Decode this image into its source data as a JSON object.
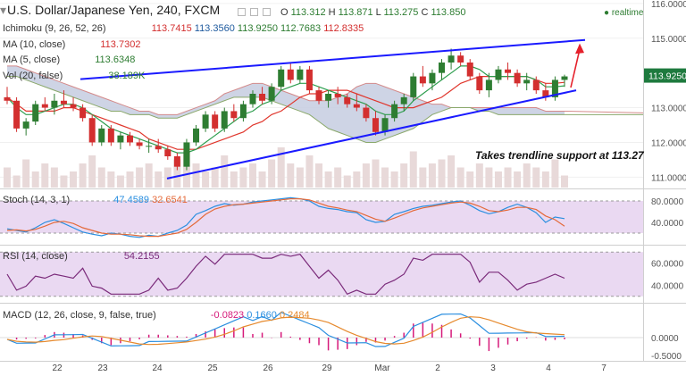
{
  "header": {
    "title": "U.S. Dollar/Japanese Yen, 240, FXCM",
    "ohlc": {
      "o_label": "O",
      "o": "113.312",
      "h_label": "H",
      "h": "113.871",
      "l_label": "L",
      "l": "113.275",
      "c_label": "C",
      "c": "113.850"
    },
    "realtime": "realtime"
  },
  "indicators": {
    "ichimoku": {
      "label": "Ichimoku (9, 26, 52, 26)",
      "v1": "113.7415",
      "v2": "113.3560",
      "v3": "113.9250",
      "v4": "112.7683",
      "v5": "112.8335"
    },
    "ma10": {
      "label": "MA (10, close)",
      "value": "113.7302"
    },
    "ma5": {
      "label": "MA (5, close)",
      "value": "113.6348"
    },
    "vol": {
      "label": "Vol (20, false)",
      "value": "38.189K"
    },
    "stoch": {
      "label": "Stoch (14, 3, 1)",
      "k": "47.4589",
      "d": "32.6541"
    },
    "rsi": {
      "label": "RSI (14, close)",
      "value": "54.2155"
    },
    "macd": {
      "label": "MACD (12, 26, close, 9, false, true)",
      "hist": "-0.0823",
      "macd": "0.1660",
      "signal": "0.2484"
    }
  },
  "annotation": "Takes trendline support at 113.27",
  "price_tag": "113.9250",
  "colors": {
    "up": "#2e7d32",
    "down": "#d32f2f",
    "trendline": "#1a1aff",
    "arrow": "#e5202b",
    "cloud": "#c5cde0",
    "cloud_edge": "#d48a8a",
    "stoch_band": "#ead9f2",
    "stoch_k": "#2b8fe0",
    "stoch_d": "#e46a3a",
    "rsi_line": "#7a2a7a",
    "macd_line": "#2b8fe0",
    "signal_line": "#e68a2e",
    "hist": "#d61a7a",
    "price_tag": "#1e7a3e",
    "ma10": "#e0362c",
    "ma5": "#2e9e4e",
    "volume": "#e8d9d9"
  },
  "chart_data": [
    {
      "type": "candlestick",
      "title": "U.S. Dollar/Japanese Yen, 240, FXCM",
      "y_ticks": [
        "116.0000",
        "115.0000",
        "113.0000",
        "112.0000",
        "111.0000"
      ],
      "ylim": [
        110.7,
        116.1
      ],
      "x_ticks": [
        "22",
        "23",
        "24",
        "25",
        "26",
        "29",
        "Mar",
        "2",
        "3",
        "4",
        "7"
      ],
      "candles": [
        {
          "o": 113.3,
          "h": 113.6,
          "l": 113.1,
          "c": 113.2
        },
        {
          "o": 113.2,
          "h": 113.3,
          "l": 112.3,
          "c": 112.4
        },
        {
          "o": 112.4,
          "h": 112.7,
          "l": 112.2,
          "c": 112.6
        },
        {
          "o": 112.6,
          "h": 113.2,
          "l": 112.5,
          "c": 113.1
        },
        {
          "o": 113.1,
          "h": 113.3,
          "l": 112.9,
          "c": 113.0
        },
        {
          "o": 113.0,
          "h": 113.4,
          "l": 112.8,
          "c": 113.2
        },
        {
          "o": 113.2,
          "h": 113.5,
          "l": 113.0,
          "c": 113.1
        },
        {
          "o": 113.1,
          "h": 113.3,
          "l": 112.9,
          "c": 113.0
        },
        {
          "o": 113.0,
          "h": 113.1,
          "l": 112.6,
          "c": 112.7
        },
        {
          "o": 112.7,
          "h": 112.8,
          "l": 111.9,
          "c": 112.0
        },
        {
          "o": 112.0,
          "h": 112.5,
          "l": 111.9,
          "c": 112.4
        },
        {
          "o": 112.4,
          "h": 112.5,
          "l": 111.9,
          "c": 112.0
        },
        {
          "o": 112.0,
          "h": 112.3,
          "l": 111.8,
          "c": 112.2
        },
        {
          "o": 112.2,
          "h": 112.3,
          "l": 111.9,
          "c": 112.0
        },
        {
          "o": 112.0,
          "h": 112.1,
          "l": 111.8,
          "c": 111.9
        },
        {
          "o": 111.9,
          "h": 112.1,
          "l": 111.7,
          "c": 111.9
        },
        {
          "o": 111.9,
          "h": 112.1,
          "l": 111.7,
          "c": 111.8
        },
        {
          "o": 111.8,
          "h": 111.9,
          "l": 111.5,
          "c": 111.6
        },
        {
          "o": 111.6,
          "h": 111.7,
          "l": 111.2,
          "c": 111.3
        },
        {
          "o": 111.3,
          "h": 112.1,
          "l": 111.2,
          "c": 112.0
        },
        {
          "o": 112.0,
          "h": 112.5,
          "l": 111.9,
          "c": 112.4
        },
        {
          "o": 112.4,
          "h": 112.9,
          "l": 112.3,
          "c": 112.8
        },
        {
          "o": 112.8,
          "h": 112.9,
          "l": 112.3,
          "c": 112.4
        },
        {
          "o": 112.4,
          "h": 113.0,
          "l": 112.3,
          "c": 112.9
        },
        {
          "o": 112.9,
          "h": 113.1,
          "l": 112.6,
          "c": 112.7
        },
        {
          "o": 112.7,
          "h": 113.2,
          "l": 112.6,
          "c": 113.1
        },
        {
          "o": 113.1,
          "h": 113.5,
          "l": 113.0,
          "c": 113.4
        },
        {
          "o": 113.4,
          "h": 113.6,
          "l": 113.1,
          "c": 113.2
        },
        {
          "o": 113.2,
          "h": 113.7,
          "l": 113.1,
          "c": 113.6
        },
        {
          "o": 113.6,
          "h": 114.2,
          "l": 113.5,
          "c": 114.1
        },
        {
          "o": 114.1,
          "h": 114.3,
          "l": 113.7,
          "c": 113.8
        },
        {
          "o": 113.8,
          "h": 114.2,
          "l": 113.7,
          "c": 114.1
        },
        {
          "o": 114.1,
          "h": 114.2,
          "l": 113.4,
          "c": 113.5
        },
        {
          "o": 113.5,
          "h": 113.6,
          "l": 113.1,
          "c": 113.2
        },
        {
          "o": 113.2,
          "h": 113.5,
          "l": 113.0,
          "c": 113.4
        },
        {
          "o": 113.4,
          "h": 113.6,
          "l": 113.1,
          "c": 113.3
        },
        {
          "o": 113.3,
          "h": 113.4,
          "l": 113.0,
          "c": 113.1
        },
        {
          "o": 113.1,
          "h": 113.4,
          "l": 112.9,
          "c": 113.0
        },
        {
          "o": 113.0,
          "h": 113.1,
          "l": 112.6,
          "c": 112.7
        },
        {
          "o": 112.7,
          "h": 112.9,
          "l": 112.2,
          "c": 112.3
        },
        {
          "o": 112.3,
          "h": 112.8,
          "l": 112.2,
          "c": 112.7
        },
        {
          "o": 112.7,
          "h": 113.2,
          "l": 112.6,
          "c": 113.1
        },
        {
          "o": 113.1,
          "h": 113.4,
          "l": 112.9,
          "c": 113.3
        },
        {
          "o": 113.3,
          "h": 114.0,
          "l": 113.2,
          "c": 113.9
        },
        {
          "o": 113.9,
          "h": 114.2,
          "l": 113.6,
          "c": 113.7
        },
        {
          "o": 113.7,
          "h": 114.1,
          "l": 113.5,
          "c": 114.0
        },
        {
          "o": 114.0,
          "h": 114.4,
          "l": 113.8,
          "c": 114.3
        },
        {
          "o": 114.3,
          "h": 114.7,
          "l": 114.1,
          "c": 114.5
        },
        {
          "o": 114.5,
          "h": 114.6,
          "l": 114.2,
          "c": 114.3
        },
        {
          "o": 114.3,
          "h": 114.4,
          "l": 113.8,
          "c": 113.9
        },
        {
          "o": 113.9,
          "h": 114.0,
          "l": 113.4,
          "c": 113.5
        },
        {
          "o": 113.5,
          "h": 114.0,
          "l": 113.3,
          "c": 113.8
        },
        {
          "o": 113.8,
          "h": 114.2,
          "l": 113.7,
          "c": 114.1
        },
        {
          "o": 114.1,
          "h": 114.3,
          "l": 113.8,
          "c": 114.0
        },
        {
          "o": 114.0,
          "h": 114.1,
          "l": 113.6,
          "c": 113.7
        },
        {
          "o": 113.7,
          "h": 114.0,
          "l": 113.5,
          "c": 113.8
        },
        {
          "o": 113.8,
          "h": 113.9,
          "l": 113.4,
          "c": 113.5
        },
        {
          "o": 113.5,
          "h": 113.7,
          "l": 113.2,
          "c": 113.3
        },
        {
          "o": 113.3,
          "h": 113.9,
          "l": 113.2,
          "c": 113.8
        },
        {
          "o": 113.8,
          "h": 113.95,
          "l": 113.6,
          "c": 113.9
        }
      ],
      "ma10": [
        113.3,
        113.1,
        112.9,
        112.9,
        112.9,
        112.9,
        113.0,
        113.0,
        112.9,
        112.8,
        112.7,
        112.6,
        112.5,
        112.4,
        112.3,
        112.1,
        112.0,
        111.9,
        111.8,
        111.8,
        111.8,
        111.9,
        112.0,
        112.1,
        112.2,
        112.3,
        112.5,
        112.6,
        112.8,
        112.9,
        113.1,
        113.3,
        113.4,
        113.4,
        113.5,
        113.5,
        113.5,
        113.4,
        113.3,
        113.2,
        113.1,
        113.0,
        113.0,
        113.0,
        113.1,
        113.2,
        113.3,
        113.5,
        113.7,
        113.8,
        113.9,
        113.9,
        113.9,
        113.9,
        113.9,
        113.9,
        113.8,
        113.7,
        113.7,
        113.73
      ],
      "ma5": [
        113.3,
        113.0,
        112.8,
        112.8,
        112.9,
        113.0,
        113.1,
        113.1,
        113.0,
        112.8,
        112.6,
        112.4,
        112.3,
        112.2,
        112.1,
        112.0,
        111.9,
        111.8,
        111.7,
        111.7,
        111.8,
        112.0,
        112.2,
        112.4,
        112.6,
        112.8,
        112.9,
        113.1,
        113.2,
        113.5,
        113.6,
        113.7,
        113.7,
        113.6,
        113.5,
        113.4,
        113.3,
        113.2,
        113.1,
        112.9,
        112.8,
        112.8,
        112.9,
        113.2,
        113.4,
        113.6,
        113.8,
        114.0,
        114.2,
        114.2,
        114.1,
        113.9,
        113.9,
        113.9,
        113.9,
        113.9,
        113.8,
        113.6,
        113.6,
        113.63
      ],
      "cloud_upper": [
        114.2,
        114.2,
        114.1,
        114.0,
        113.9,
        113.8,
        113.7,
        113.6,
        113.5,
        113.4,
        113.3,
        113.2,
        113.1,
        113.0,
        112.9,
        112.9,
        112.8,
        112.8,
        112.8,
        112.9,
        113.0,
        113.1,
        113.2,
        113.4,
        113.5,
        113.6,
        113.7,
        113.7,
        113.6,
        113.5,
        113.4,
        113.3,
        113.2,
        113.2,
        113.2,
        113.3,
        113.4,
        113.6,
        113.7,
        113.7,
        113.6,
        113.5,
        113.4,
        113.3,
        113.2,
        113.1,
        113.1,
        113.0,
        113.0,
        113.0,
        113.0,
        113.0,
        113.0,
        113.0,
        113.0,
        113.0,
        113.0,
        112.9,
        112.9,
        112.9
      ],
      "cloud_lower": [
        113.9,
        113.9,
        113.8,
        113.7,
        113.6,
        113.5,
        113.4,
        113.3,
        113.2,
        113.1,
        113.0,
        112.9,
        112.9,
        112.8,
        112.8,
        112.8,
        112.7,
        112.7,
        112.7,
        112.8,
        112.9,
        113.0,
        113.1,
        113.2,
        113.3,
        113.3,
        113.3,
        113.3,
        113.2,
        113.1,
        113.0,
        112.9,
        112.8,
        112.6,
        112.4,
        112.3,
        112.2,
        112.1,
        112.0,
        112.0,
        112.1,
        112.2,
        112.3,
        112.4,
        112.6,
        112.8,
        112.9,
        113.0,
        113.0,
        113.0,
        112.9,
        112.9,
        112.8,
        112.8,
        112.8,
        112.8,
        112.8,
        112.8,
        112.8,
        112.8
      ],
      "volume": [
        5,
        3,
        7,
        4,
        6,
        5,
        3,
        4,
        6,
        8,
        5,
        4,
        3,
        4,
        5,
        6,
        4,
        5,
        7,
        9,
        6,
        4,
        5,
        8,
        4,
        5,
        6,
        4,
        7,
        10,
        6,
        5,
        8,
        6,
        4,
        5,
        3,
        4,
        6,
        7,
        5,
        4,
        6,
        9,
        5,
        6,
        7,
        8,
        5,
        4,
        6,
        5,
        4,
        5,
        4,
        6,
        5,
        4,
        7,
        3
      ],
      "stoch_k": [
        28,
        25,
        22,
        30,
        40,
        45,
        38,
        30,
        22,
        18,
        15,
        20,
        18,
        14,
        12,
        16,
        14,
        20,
        25,
        35,
        55,
        62,
        70,
        75,
        72,
        74,
        78,
        80,
        82,
        84,
        86,
        84,
        80,
        70,
        66,
        64,
        60,
        58,
        45,
        40,
        42,
        55,
        60,
        66,
        70,
        72,
        75,
        78,
        80,
        72,
        62,
        56,
        60,
        68,
        74,
        68,
        58,
        40,
        50,
        47
      ],
      "stoch_d": [
        25,
        26,
        24,
        27,
        33,
        40,
        42,
        38,
        30,
        25,
        20,
        18,
        18,
        17,
        15,
        14,
        14,
        17,
        20,
        27,
        40,
        55,
        65,
        70,
        73,
        74,
        76,
        78,
        80,
        82,
        84,
        84,
        82,
        76,
        70,
        67,
        63,
        60,
        53,
        46,
        42,
        48,
        55,
        62,
        67,
        70,
        73,
        76,
        78,
        76,
        70,
        62,
        60,
        63,
        68,
        68,
        64,
        52,
        45,
        33
      ]
    }
  ]
}
